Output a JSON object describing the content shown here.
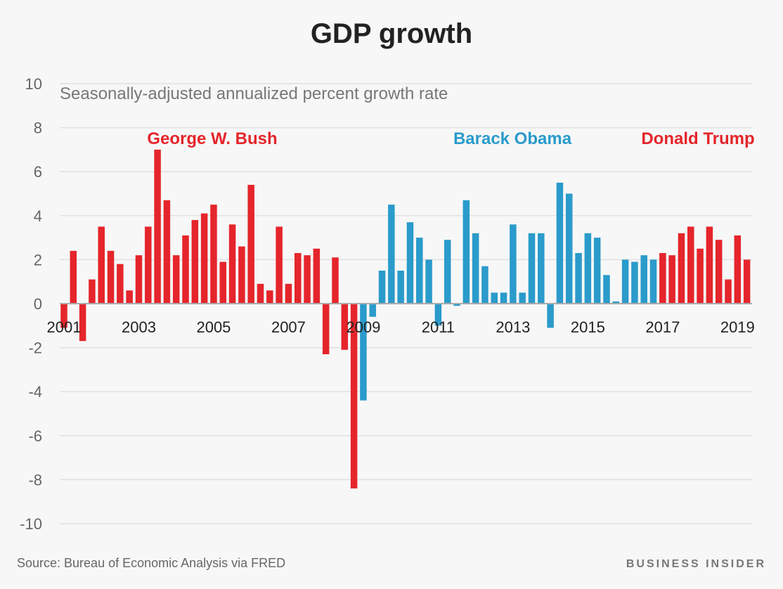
{
  "chart_data": {
    "type": "bar",
    "title": "GDP growth",
    "subtitle": "Seasonally-adjusted annualized percent growth rate",
    "ylim": [
      -10,
      10
    ],
    "yticks": [
      10,
      8,
      6,
      4,
      2,
      0,
      -2,
      -4,
      -6,
      -8,
      -10
    ],
    "xtick_labels": [
      "2001",
      "2003",
      "2005",
      "2007",
      "2009",
      "2011",
      "2013",
      "2015",
      "2017",
      "2019"
    ],
    "grid": true,
    "start": "2001 Q1",
    "frequency": "quarterly",
    "values": [
      -1.1,
      2.4,
      -1.7,
      1.1,
      3.5,
      2.4,
      1.8,
      0.6,
      2.2,
      3.5,
      7.0,
      4.7,
      2.2,
      3.1,
      3.8,
      4.1,
      4.5,
      1.9,
      3.6,
      2.6,
      5.4,
      0.9,
      0.6,
      3.5,
      0.9,
      2.3,
      2.2,
      2.5,
      -2.3,
      2.1,
      -2.1,
      -8.4,
      -4.4,
      -0.6,
      1.5,
      4.5,
      1.5,
      3.7,
      3.0,
      2.0,
      -1.0,
      2.9,
      -0.1,
      4.7,
      3.2,
      1.7,
      0.5,
      0.5,
      3.6,
      0.5,
      3.2,
      3.2,
      -1.1,
      5.5,
      5.0,
      2.3,
      3.2,
      3.0,
      1.3,
      0.1,
      2.0,
      1.9,
      2.2,
      2.0,
      2.3,
      2.2,
      3.2,
      3.5,
      2.5,
      3.5,
      2.9,
      1.1,
      3.1,
      2.0
    ],
    "series": [
      {
        "name": "George W. Bush",
        "color": "#e5252b",
        "first_quarter": "2001 Q1",
        "last_quarter": "2008 Q4"
      },
      {
        "name": "Barack Obama",
        "color": "#2a9bcb",
        "first_quarter": "2009 Q1",
        "last_quarter": "2016 Q4"
      },
      {
        "name": "Donald Trump",
        "color": "#e5252b",
        "first_quarter": "2017 Q1",
        "last_quarter": "2019 Q2"
      }
    ]
  },
  "footer": {
    "source": "Source: Bureau of Economic Analysis via FRED",
    "brand": "BUSINESS INSIDER"
  }
}
